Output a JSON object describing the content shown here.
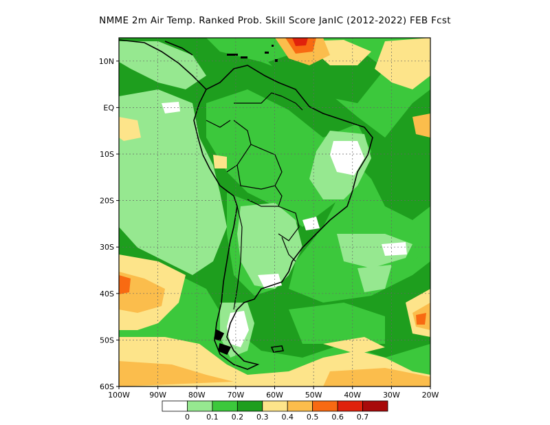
{
  "title": "NMME  2m Air Temp. Ranked Prob. Skill Score JanIC (2012-2022) FEB Fcst",
  "map": {
    "lon_range": [
      -100,
      -20
    ],
    "lat_range": [
      -60,
      15
    ],
    "x_ticks": [
      "100W",
      "90W",
      "80W",
      "70W",
      "60W",
      "50W",
      "40W",
      "30W",
      "20W"
    ],
    "y_ticks": [
      "10N",
      "EQ",
      "10S",
      "20S",
      "30S",
      "40S",
      "50S",
      "60S"
    ],
    "grid": "dotted"
  },
  "colors": {
    "bins": [
      "#ffffff",
      "#96e890",
      "#3cc83c",
      "#1e9e1e",
      "#fde48a",
      "#fbbd4c",
      "#f86a12",
      "#e0220c",
      "#a80a0a"
    ],
    "coast": "#000000",
    "land_ocean_base": "#3cc83c"
  },
  "legend": {
    "labels": [
      "0",
      "0.1",
      "0.2",
      "0.3",
      "0.4",
      "0.5",
      "0.6",
      "0.7"
    ]
  }
}
